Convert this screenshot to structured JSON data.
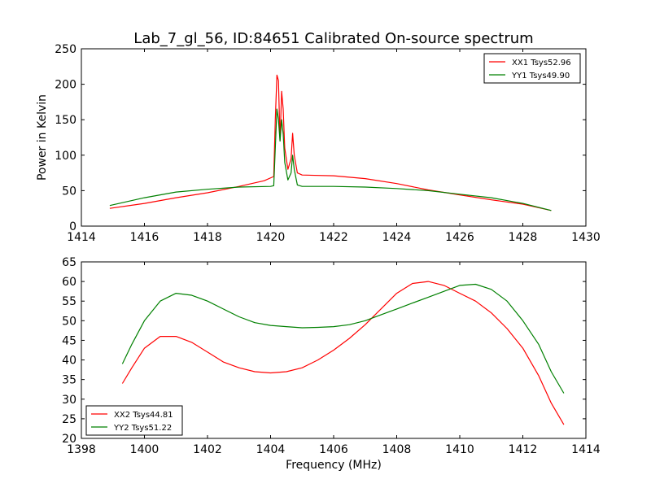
{
  "figure": {
    "title": "Lab_7_gl_56, ID:84651 Calibrated On-source spectrum"
  },
  "chart_data": [
    {
      "type": "line",
      "title": "Lab_7_gl_56, ID:84651 Calibrated On-source spectrum",
      "xlabel": "",
      "ylabel": "Power in Kelvin",
      "xlim": [
        1414,
        1430
      ],
      "ylim": [
        0,
        250
      ],
      "xticks": [
        1414,
        1416,
        1418,
        1420,
        1422,
        1424,
        1426,
        1428,
        1430
      ],
      "yticks": [
        0,
        50,
        100,
        150,
        200,
        250
      ],
      "grid": false,
      "legend_position": "top-right",
      "series": [
        {
          "name": "XX1 Tsys52.96",
          "color": "#ff0000",
          "points": [
            [
              1414.9,
              25
            ],
            [
              1416,
              32
            ],
            [
              1417,
              40
            ],
            [
              1418,
              47
            ],
            [
              1419,
              56
            ],
            [
              1419.8,
              64
            ],
            [
              1420.1,
              70
            ],
            [
              1420.15,
              150
            ],
            [
              1420.2,
              213
            ],
            [
              1420.25,
              205
            ],
            [
              1420.3,
              120
            ],
            [
              1420.35,
              190
            ],
            [
              1420.4,
              165
            ],
            [
              1420.45,
              110
            ],
            [
              1420.55,
              80
            ],
            [
              1420.65,
              95
            ],
            [
              1420.7,
              131
            ],
            [
              1420.75,
              100
            ],
            [
              1420.85,
              75
            ],
            [
              1421,
              72
            ],
            [
              1422,
              71
            ],
            [
              1423,
              67
            ],
            [
              1424,
              60
            ],
            [
              1425,
              51
            ],
            [
              1426,
              44
            ],
            [
              1427,
              37
            ],
            [
              1428,
              31
            ],
            [
              1428.9,
              22
            ]
          ]
        },
        {
          "name": "YY1 Tsys49.90",
          "color": "#008000",
          "points": [
            [
              1414.9,
              29
            ],
            [
              1416,
              40
            ],
            [
              1417,
              48
            ],
            [
              1418,
              52
            ],
            [
              1419,
              55
            ],
            [
              1420,
              56
            ],
            [
              1420.1,
              57
            ],
            [
              1420.15,
              110
            ],
            [
              1420.2,
              165
            ],
            [
              1420.25,
              150
            ],
            [
              1420.3,
              120
            ],
            [
              1420.35,
              150
            ],
            [
              1420.4,
              130
            ],
            [
              1420.45,
              90
            ],
            [
              1420.55,
              65
            ],
            [
              1420.65,
              75
            ],
            [
              1420.7,
              100
            ],
            [
              1420.75,
              80
            ],
            [
              1420.85,
              58
            ],
            [
              1421,
              56
            ],
            [
              1422,
              56
            ],
            [
              1423,
              55
            ],
            [
              1424,
              53
            ],
            [
              1425,
              50
            ],
            [
              1426,
              45
            ],
            [
              1427,
              40
            ],
            [
              1428,
              32
            ],
            [
              1428.9,
              22
            ]
          ]
        }
      ]
    },
    {
      "type": "line",
      "title": "",
      "xlabel": "Frequency (MHz)",
      "ylabel": "",
      "xlim": [
        1398,
        1414
      ],
      "ylim": [
        20,
        65
      ],
      "xticks": [
        1398,
        1400,
        1402,
        1404,
        1406,
        1408,
        1410,
        1412,
        1414
      ],
      "yticks": [
        20,
        25,
        30,
        35,
        40,
        45,
        50,
        55,
        60,
        65
      ],
      "grid": false,
      "legend_position": "bottom-left",
      "series": [
        {
          "name": "XX2 Tsys44.81",
          "color": "#ff0000",
          "points": [
            [
              1399.3,
              34
            ],
            [
              1399.6,
              38
            ],
            [
              1400,
              43
            ],
            [
              1400.5,
              46
            ],
            [
              1401,
              46
            ],
            [
              1401.5,
              44.5
            ],
            [
              1402,
              42
            ],
            [
              1402.5,
              39.5
            ],
            [
              1403,
              38
            ],
            [
              1403.5,
              37
            ],
            [
              1404,
              36.7
            ],
            [
              1404.5,
              37
            ],
            [
              1405,
              38
            ],
            [
              1405.5,
              40
            ],
            [
              1406,
              42.5
            ],
            [
              1406.5,
              45.5
            ],
            [
              1407,
              49
            ],
            [
              1407.5,
              53
            ],
            [
              1408,
              57
            ],
            [
              1408.5,
              59.5
            ],
            [
              1409,
              60
            ],
            [
              1409.5,
              59
            ],
            [
              1410,
              57
            ],
            [
              1410.5,
              55
            ],
            [
              1411,
              52
            ],
            [
              1411.5,
              48
            ],
            [
              1412,
              43
            ],
            [
              1412.5,
              36
            ],
            [
              1412.9,
              29
            ],
            [
              1413.3,
              23.5
            ]
          ]
        },
        {
          "name": "YY2 Tsys51.22",
          "color": "#008000",
          "points": [
            [
              1399.3,
              39
            ],
            [
              1399.6,
              44
            ],
            [
              1400,
              50
            ],
            [
              1400.5,
              55
            ],
            [
              1401,
              57
            ],
            [
              1401.5,
              56.5
            ],
            [
              1402,
              55
            ],
            [
              1402.5,
              53
            ],
            [
              1403,
              51
            ],
            [
              1403.5,
              49.5
            ],
            [
              1404,
              48.8
            ],
            [
              1404.5,
              48.5
            ],
            [
              1405,
              48.2
            ],
            [
              1405.5,
              48.3
            ],
            [
              1406,
              48.5
            ],
            [
              1406.5,
              49
            ],
            [
              1407,
              50
            ],
            [
              1407.5,
              51.5
            ],
            [
              1408,
              53
            ],
            [
              1408.5,
              54.5
            ],
            [
              1409,
              56
            ],
            [
              1409.5,
              57.5
            ],
            [
              1410,
              59
            ],
            [
              1410.5,
              59.3
            ],
            [
              1411,
              58
            ],
            [
              1411.5,
              55
            ],
            [
              1412,
              50
            ],
            [
              1412.5,
              44
            ],
            [
              1412.9,
              37
            ],
            [
              1413.3,
              31.5
            ]
          ]
        }
      ]
    }
  ]
}
